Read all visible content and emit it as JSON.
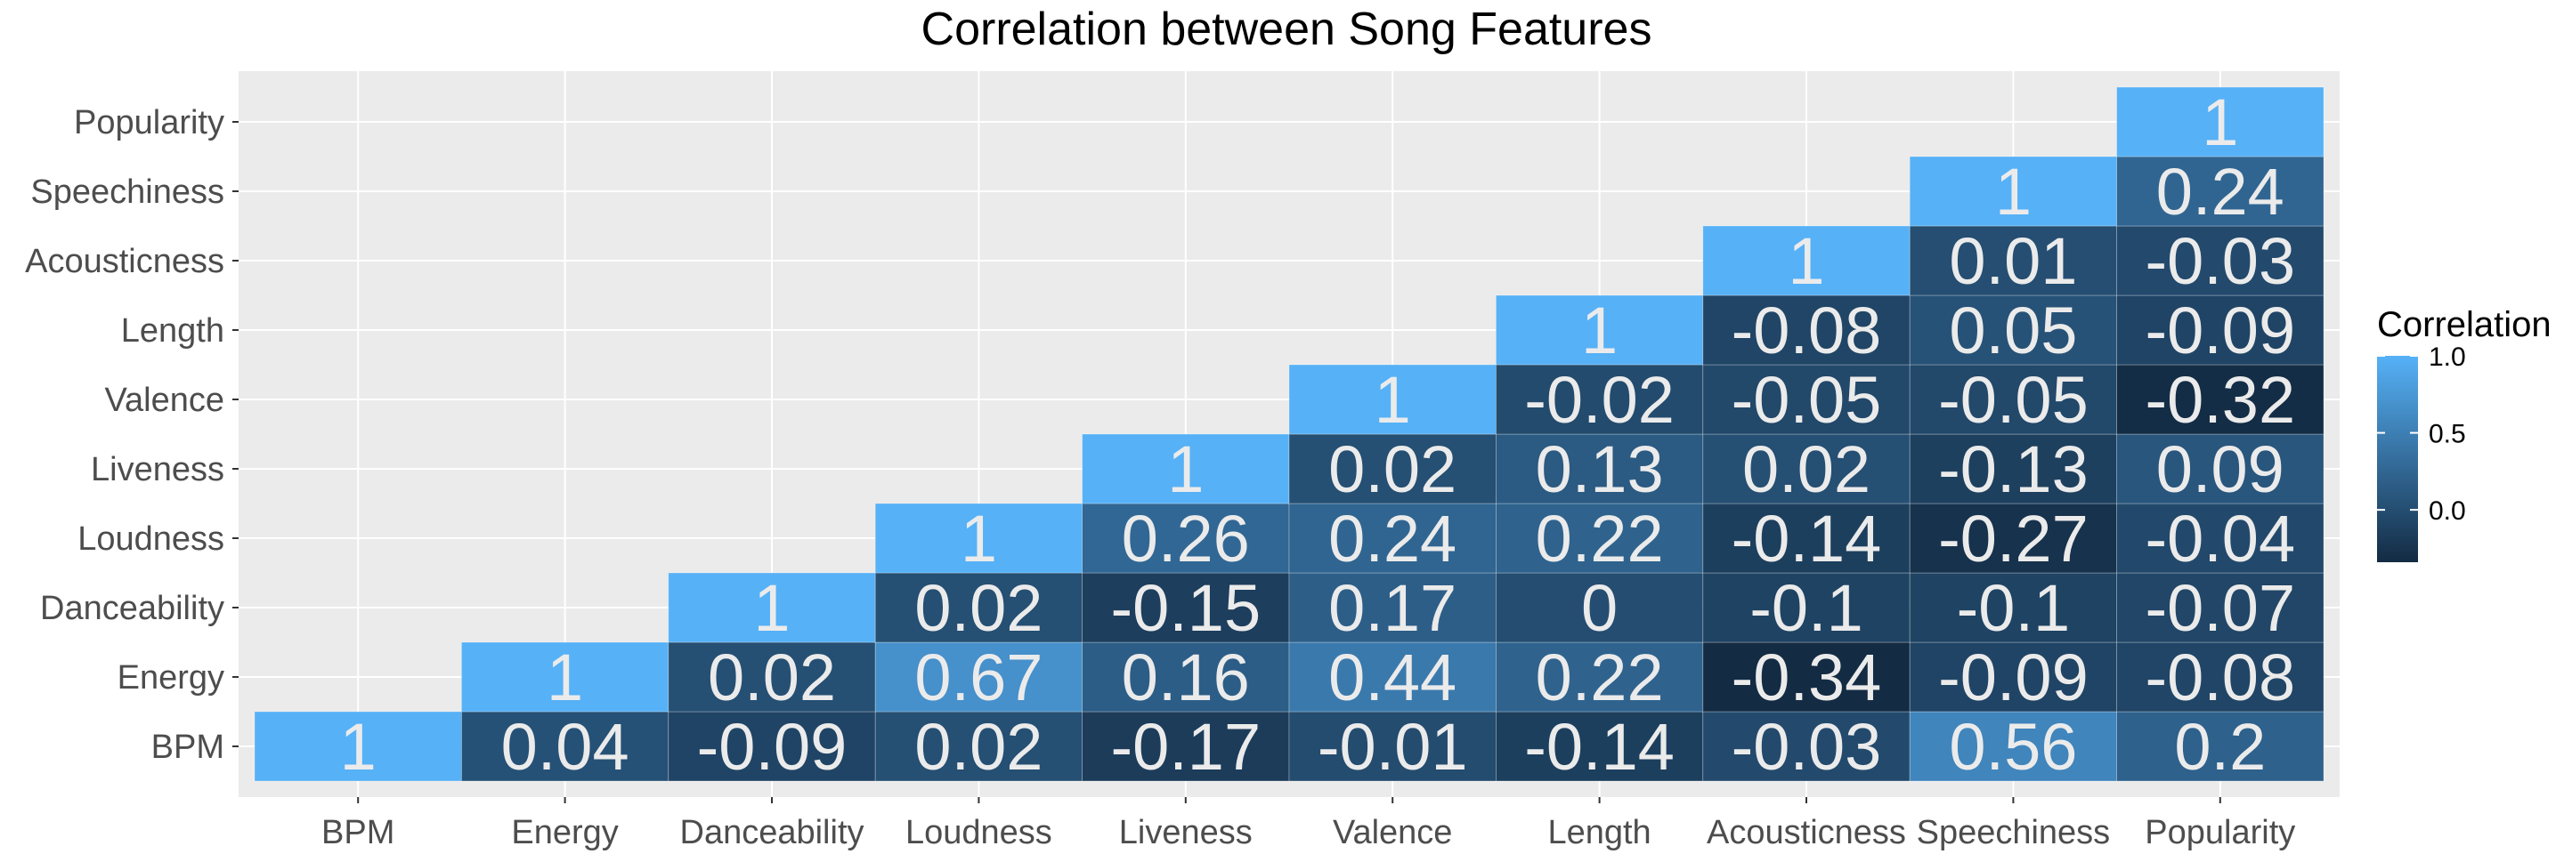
{
  "chart_data": {
    "type": "heatmap",
    "title": "Correlation between Song Features",
    "x_categories": [
      "BPM",
      "Energy",
      "Danceability",
      "Loudness",
      "Liveness",
      "Valence",
      "Length",
      "Acousticness",
      "Speechiness",
      "Popularity"
    ],
    "y_categories": [
      "BPM",
      "Energy",
      "Danceability",
      "Loudness",
      "Liveness",
      "Valence",
      "Length",
      "Acousticness",
      "Speechiness",
      "Popularity"
    ],
    "cells": [
      {
        "x": "BPM",
        "y": "BPM",
        "value": 1,
        "label": "1"
      },
      {
        "x": "Energy",
        "y": "BPM",
        "value": 0.04,
        "label": "0.04"
      },
      {
        "x": "Danceability",
        "y": "BPM",
        "value": -0.09,
        "label": "-0.09"
      },
      {
        "x": "Loudness",
        "y": "BPM",
        "value": 0.02,
        "label": "0.02"
      },
      {
        "x": "Liveness",
        "y": "BPM",
        "value": -0.17,
        "label": "-0.17"
      },
      {
        "x": "Valence",
        "y": "BPM",
        "value": -0.01,
        "label": "-0.01"
      },
      {
        "x": "Length",
        "y": "BPM",
        "value": -0.14,
        "label": "-0.14"
      },
      {
        "x": "Acousticness",
        "y": "BPM",
        "value": -0.03,
        "label": "-0.03"
      },
      {
        "x": "Speechiness",
        "y": "BPM",
        "value": 0.56,
        "label": "0.56"
      },
      {
        "x": "Popularity",
        "y": "BPM",
        "value": 0.2,
        "label": "0.2"
      },
      {
        "x": "Energy",
        "y": "Energy",
        "value": 1,
        "label": "1"
      },
      {
        "x": "Danceability",
        "y": "Energy",
        "value": 0.02,
        "label": "0.02"
      },
      {
        "x": "Loudness",
        "y": "Energy",
        "value": 0.67,
        "label": "0.67"
      },
      {
        "x": "Liveness",
        "y": "Energy",
        "value": 0.16,
        "label": "0.16"
      },
      {
        "x": "Valence",
        "y": "Energy",
        "value": 0.44,
        "label": "0.44"
      },
      {
        "x": "Length",
        "y": "Energy",
        "value": 0.22,
        "label": "0.22"
      },
      {
        "x": "Acousticness",
        "y": "Energy",
        "value": -0.34,
        "label": "-0.34"
      },
      {
        "x": "Speechiness",
        "y": "Energy",
        "value": -0.09,
        "label": "-0.09"
      },
      {
        "x": "Popularity",
        "y": "Energy",
        "value": -0.08,
        "label": "-0.08"
      },
      {
        "x": "Danceability",
        "y": "Danceability",
        "value": 1,
        "label": "1"
      },
      {
        "x": "Loudness",
        "y": "Danceability",
        "value": 0.02,
        "label": "0.02"
      },
      {
        "x": "Liveness",
        "y": "Danceability",
        "value": -0.15,
        "label": "-0.15"
      },
      {
        "x": "Valence",
        "y": "Danceability",
        "value": 0.17,
        "label": "0.17"
      },
      {
        "x": "Length",
        "y": "Danceability",
        "value": 0,
        "label": "0"
      },
      {
        "x": "Acousticness",
        "y": "Danceability",
        "value": -0.1,
        "label": "-0.1"
      },
      {
        "x": "Speechiness",
        "y": "Danceability",
        "value": -0.1,
        "label": "-0.1"
      },
      {
        "x": "Popularity",
        "y": "Danceability",
        "value": -0.07,
        "label": "-0.07"
      },
      {
        "x": "Loudness",
        "y": "Loudness",
        "value": 1,
        "label": "1"
      },
      {
        "x": "Liveness",
        "y": "Loudness",
        "value": 0.26,
        "label": "0.26"
      },
      {
        "x": "Valence",
        "y": "Loudness",
        "value": 0.24,
        "label": "0.24"
      },
      {
        "x": "Length",
        "y": "Loudness",
        "value": 0.22,
        "label": "0.22"
      },
      {
        "x": "Acousticness",
        "y": "Loudness",
        "value": -0.14,
        "label": "-0.14"
      },
      {
        "x": "Speechiness",
        "y": "Loudness",
        "value": -0.27,
        "label": "-0.27"
      },
      {
        "x": "Popularity",
        "y": "Loudness",
        "value": -0.04,
        "label": "-0.04"
      },
      {
        "x": "Liveness",
        "y": "Liveness",
        "value": 1,
        "label": "1"
      },
      {
        "x": "Valence",
        "y": "Liveness",
        "value": 0.02,
        "label": "0.02"
      },
      {
        "x": "Length",
        "y": "Liveness",
        "value": 0.13,
        "label": "0.13"
      },
      {
        "x": "Acousticness",
        "y": "Liveness",
        "value": 0.02,
        "label": "0.02"
      },
      {
        "x": "Speechiness",
        "y": "Liveness",
        "value": -0.13,
        "label": "-0.13"
      },
      {
        "x": "Popularity",
        "y": "Liveness",
        "value": 0.09,
        "label": "0.09"
      },
      {
        "x": "Valence",
        "y": "Valence",
        "value": 1,
        "label": "1"
      },
      {
        "x": "Length",
        "y": "Valence",
        "value": -0.02,
        "label": "-0.02"
      },
      {
        "x": "Acousticness",
        "y": "Valence",
        "value": -0.05,
        "label": "-0.05"
      },
      {
        "x": "Speechiness",
        "y": "Valence",
        "value": -0.05,
        "label": "-0.05"
      },
      {
        "x": "Popularity",
        "y": "Valence",
        "value": -0.32,
        "label": "-0.32"
      },
      {
        "x": "Length",
        "y": "Length",
        "value": 1,
        "label": "1"
      },
      {
        "x": "Acousticness",
        "y": "Length",
        "value": -0.08,
        "label": "-0.08"
      },
      {
        "x": "Speechiness",
        "y": "Length",
        "value": 0.05,
        "label": "0.05"
      },
      {
        "x": "Popularity",
        "y": "Length",
        "value": -0.09,
        "label": "-0.09"
      },
      {
        "x": "Acousticness",
        "y": "Acousticness",
        "value": 1,
        "label": "1"
      },
      {
        "x": "Speechiness",
        "y": "Acousticness",
        "value": 0.01,
        "label": "0.01"
      },
      {
        "x": "Popularity",
        "y": "Acousticness",
        "value": -0.03,
        "label": "-0.03"
      },
      {
        "x": "Speechiness",
        "y": "Speechiness",
        "value": 1,
        "label": "1"
      },
      {
        "x": "Popularity",
        "y": "Speechiness",
        "value": 0.24,
        "label": "0.24"
      },
      {
        "x": "Popularity",
        "y": "Popularity",
        "value": 1,
        "label": "1"
      }
    ],
    "legend": {
      "title": "Correlation",
      "ticks": [
        {
          "value": 1.0,
          "label": "1.0"
        },
        {
          "value": 0.5,
          "label": "0.5"
        },
        {
          "value": 0.0,
          "label": "0.0"
        }
      ],
      "range": [
        -0.34,
        1
      ],
      "color_low": "#132b43",
      "color_high": "#56b1f7",
      "placement": "right"
    },
    "panel_background": "#ebebeb",
    "grid": true
  }
}
